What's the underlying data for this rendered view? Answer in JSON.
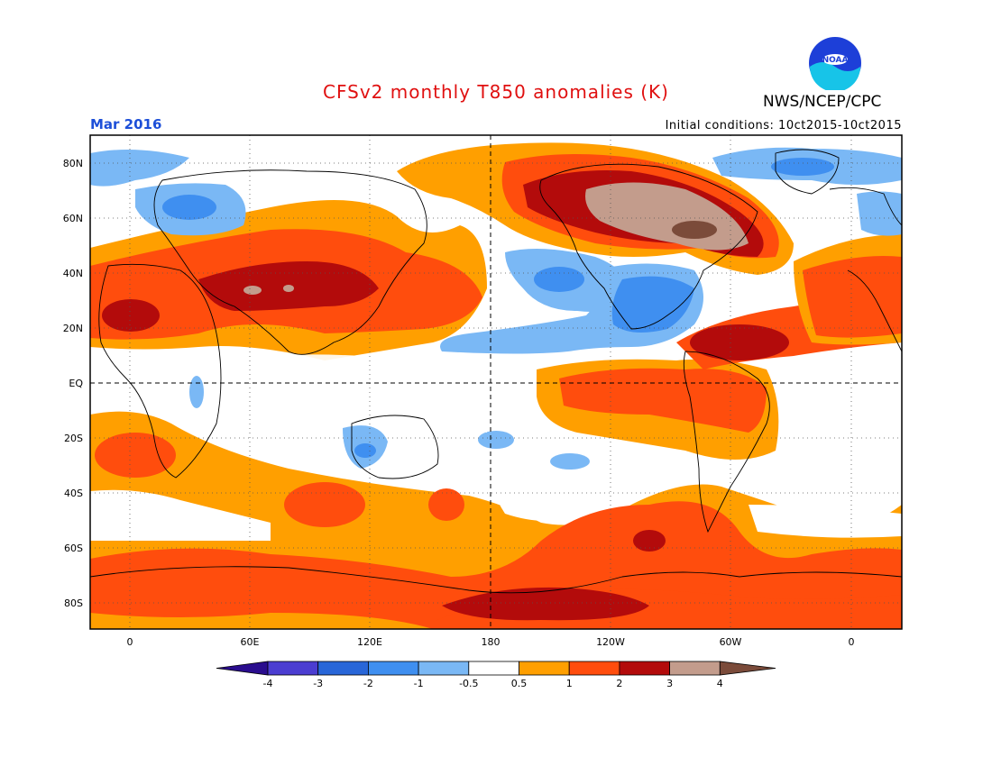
{
  "header": {
    "title": "CFSv2 monthly T850 anomalies (K)",
    "agency": "NWS/NCEP/CPC",
    "valid_month": "Mar 2016",
    "initial_conditions": "Initial conditions: 10ct2015-10ct2015",
    "logo_text": "NOAA"
  },
  "map": {
    "projection": "cylindrical equidistant",
    "center_longitude": 180,
    "lat_labels": [
      "80N",
      "60N",
      "40N",
      "20N",
      "EQ",
      "20S",
      "40S",
      "60S",
      "80S"
    ],
    "lon_labels": [
      "0",
      "60E",
      "120E",
      "180",
      "120W",
      "60W",
      "0"
    ],
    "gridlines": "dotted",
    "reference_lines": [
      "equator",
      "dateline"
    ]
  },
  "legend": {
    "tick_labels": [
      "-4",
      "-3",
      "-2",
      "-1",
      "-0.5",
      "0.5",
      "1",
      "2",
      "3",
      "4"
    ],
    "colors": [
      "#2a0d8e",
      "#4b3dd1",
      "#2866d8",
      "#3f8ff0",
      "#7ab8f5",
      "#ffffff",
      "#ff9f00",
      "#ff4d0d",
      "#b30b0b",
      "#c39c8c",
      "#7b4b3a"
    ]
  }
}
